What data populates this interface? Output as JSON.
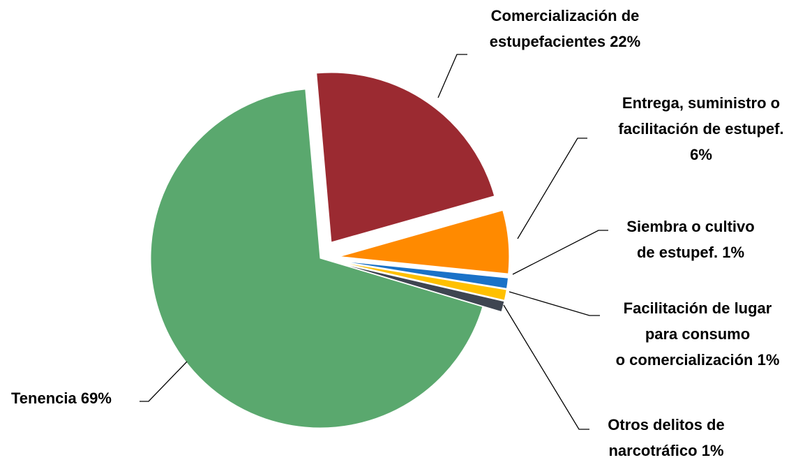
{
  "chart_data": {
    "type": "pie",
    "categories": [
      "Comercialización de\nestupefacientes",
      "Entrega, suministro o\nfacilitación de estupef.\n",
      "Siembra o cultivo\nde estupef.",
      "Facilitación de lugar\npara consumo\no comercialización",
      "Otros delitos de\nnarcotráfico",
      "Tenencia"
    ],
    "values": [
      22,
      6,
      1,
      1,
      1,
      69
    ],
    "value_labels": [
      "22%",
      "6%",
      "1%",
      "1%",
      "1%",
      "69%"
    ],
    "colors": [
      "#9b2a31",
      "#ff8a00",
      "#1a72c8",
      "#ffc000",
      "#3e4551",
      "#5aa86e"
    ]
  }
}
